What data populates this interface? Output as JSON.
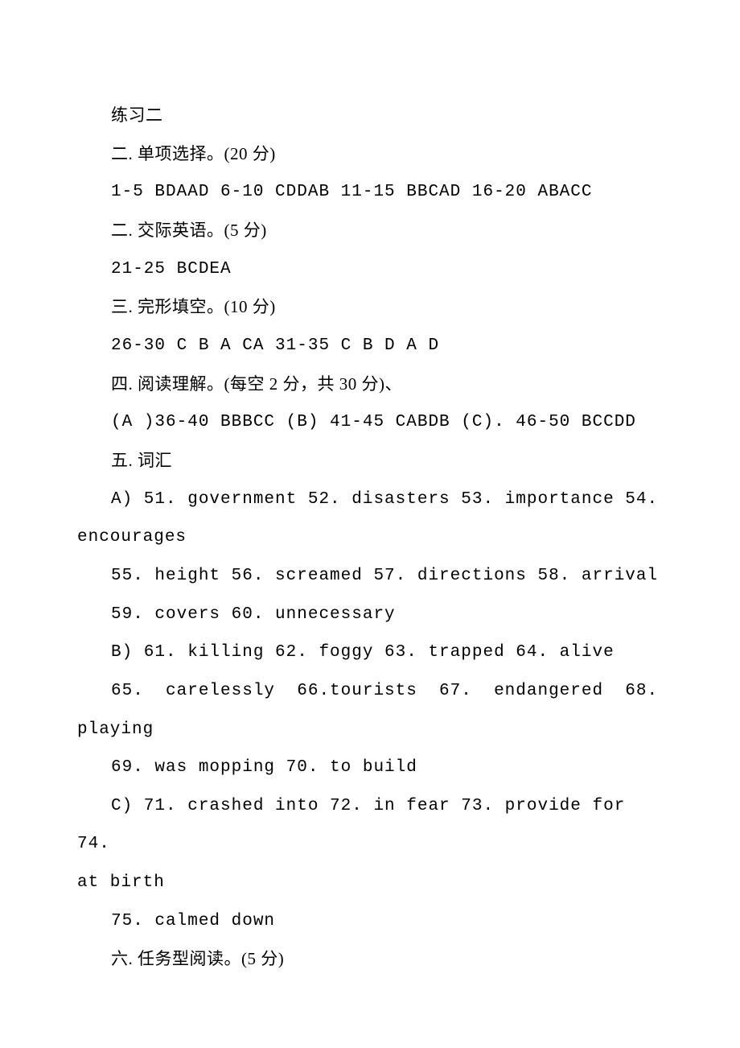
{
  "doc": {
    "title_fontsize": 21,
    "body_fontsize": 21,
    "text_color": "#000000",
    "background_color": "#ffffff",
    "line_height": 2.27,
    "font_family": "SimSun",
    "mono_font_family": "Courier New",
    "indent_ems": 2,
    "lines": [
      {
        "text": "练习二",
        "indent": true,
        "mono": false
      },
      {
        "text": "二. 单项选择。(20 分)",
        "indent": true,
        "mono": false
      },
      {
        "text": "1-5 BDAAD 6-10 CDDAB 11-15 BBCAD 16-20 ABACC",
        "indent": true,
        "mono": true
      },
      {
        "text": "二. 交际英语。(5 分)",
        "indent": true,
        "mono": false
      },
      {
        "text": "21-25 BCDEA",
        "indent": true,
        "mono": true
      },
      {
        "text": "三. 完形填空。(10 分)",
        "indent": true,
        "mono": false
      },
      {
        "text": "26-30 C B A CA 31-35 C B D A D",
        "indent": true,
        "mono": true
      },
      {
        "text": "四. 阅读理解。(每空 2 分，共 30 分)、",
        "indent": true,
        "mono": false
      },
      {
        "text": "(A )36-40 BBBCC (B) 41-45 CABDB (C). 46-50 BCCDD",
        "indent": true,
        "mono": true
      },
      {
        "text": "五. 词汇",
        "indent": true,
        "mono": false
      },
      {
        "text": "A) 51. government 52. disasters 53. importance 54.",
        "indent": true,
        "mono": true
      },
      {
        "text": "encourages",
        "indent": false,
        "mono": true
      },
      {
        "text": "55. height 56. screamed 57. directions 58. arrival",
        "indent": true,
        "mono": true
      },
      {
        "text": "59. covers 60. unnecessary",
        "indent": true,
        "mono": true
      },
      {
        "text": "B) 61. killing 62. foggy 63. trapped 64. alive",
        "indent": true,
        "mono": true
      },
      {
        "text": "65.  carelessly  66.tourists  67.  endangered  68.",
        "indent": true,
        "mono": true
      },
      {
        "text": "playing",
        "indent": false,
        "mono": true
      },
      {
        "text": "69. was mopping 70. to build",
        "indent": true,
        "mono": true
      },
      {
        "text": "C) 71. crashed into 72. in fear 73. provide for 74.",
        "indent": true,
        "mono": true
      },
      {
        "text": "at birth",
        "indent": false,
        "mono": true
      },
      {
        "text": "75. calmed down",
        "indent": true,
        "mono": true
      },
      {
        "text": "六. 任务型阅读。(5 分)",
        "indent": true,
        "mono": false
      }
    ]
  }
}
